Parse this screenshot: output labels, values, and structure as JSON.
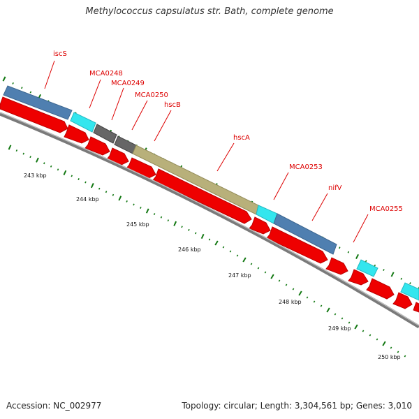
{
  "title": "Methylococcus capsulatus str. Bath, complete genome",
  "footer": {
    "accession": "Accession: NC_002977",
    "summary": "Topology: circular; Length: 3,304,561 bp; Genes: 3,010"
  },
  "colors": {
    "label": "#dd0000",
    "cds_arrow": "#ee0000",
    "blue_gene": "#4f7fb0",
    "cyan_gene": "#33e6ee",
    "gray_gene": "#666666",
    "olive_gene": "#b8b07a",
    "backbone": "#7a7a7a",
    "tick": "#117711"
  },
  "gene_labels": [
    {
      "text": "iscS"
    },
    {
      "text": "MCA0248"
    },
    {
      "text": "MCA0249"
    },
    {
      "text": "MCA0250"
    },
    {
      "text": "hscB"
    },
    {
      "text": "hscA"
    },
    {
      "text": "MCA0253"
    },
    {
      "text": "nifV"
    },
    {
      "text": "MCA0255"
    }
  ],
  "kbp_labels": [
    "243 kbp",
    "244 kbp",
    "245 kbp",
    "246 kbp",
    "247 kbp",
    "248 kbp",
    "249 kbp",
    "250 kbp"
  ]
}
